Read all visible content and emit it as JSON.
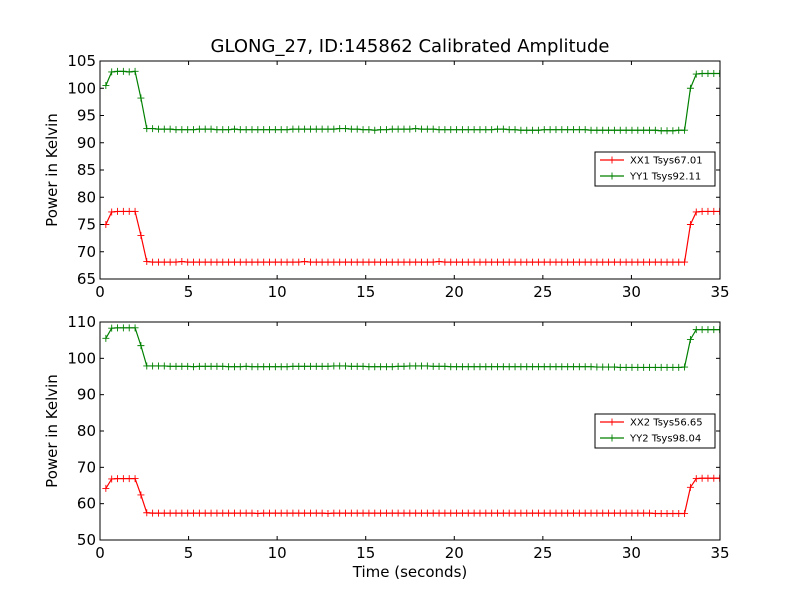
{
  "figure": {
    "title": "GLONG_27, ID:145862 Calibrated Amplitude",
    "xlabel": "Time (seconds)"
  },
  "chart_data": [
    {
      "type": "line",
      "title": "GLONG_27, ID:145862 Calibrated Amplitude",
      "xlabel": "",
      "ylabel": "Power in Kelvin",
      "xlim": [
        0,
        35
      ],
      "ylim": [
        65,
        105
      ],
      "xticks": [
        "0",
        "5",
        "10",
        "15",
        "20",
        "25",
        "30",
        "35"
      ],
      "yticks": [
        "65",
        "70",
        "75",
        "80",
        "85",
        "90",
        "95",
        "100",
        "105"
      ],
      "x_start": 0.33,
      "x_step": 0.33,
      "legend_position": "right",
      "series": [
        {
          "name": "XX1 Tsys67.01",
          "color": "#ff0000",
          "values": [
            75.0,
            77.3,
            77.4,
            77.4,
            77.4,
            77.4,
            73.0,
            68.2,
            68.1,
            68.1,
            68.1,
            68.1,
            68.1,
            68.2,
            68.1,
            68.1,
            68.1,
            68.1,
            68.1,
            68.1,
            68.1,
            68.1,
            68.1,
            68.1,
            68.1,
            68.1,
            68.1,
            68.1,
            68.1,
            68.1,
            68.1,
            68.1,
            68.1,
            68.1,
            68.2,
            68.1,
            68.1,
            68.1,
            68.1,
            68.1,
            68.1,
            68.1,
            68.1,
            68.1,
            68.1,
            68.1,
            68.1,
            68.1,
            68.1,
            68.1,
            68.1,
            68.1,
            68.1,
            68.1,
            68.1,
            68.1,
            68.1,
            68.2,
            68.1,
            68.1,
            68.1,
            68.1,
            68.1,
            68.1,
            68.1,
            68.1,
            68.1,
            68.1,
            68.1,
            68.1,
            68.1,
            68.1,
            68.1,
            68.1,
            68.1,
            68.1,
            68.1,
            68.1,
            68.1,
            68.1,
            68.1,
            68.1,
            68.1,
            68.1,
            68.1,
            68.1,
            68.1,
            68.1,
            68.1,
            68.1,
            68.1,
            68.1,
            68.1,
            68.1,
            68.1,
            68.1,
            68.1,
            68.1,
            68.1,
            68.1,
            75.0,
            77.3,
            77.4,
            77.4,
            77.4,
            77.4
          ]
        },
        {
          "name": "YY1 Tsys92.11",
          "color": "#008000",
          "values": [
            100.5,
            103.0,
            103.1,
            103.1,
            103.0,
            103.1,
            98.2,
            92.6,
            92.6,
            92.5,
            92.5,
            92.5,
            92.4,
            92.4,
            92.4,
            92.4,
            92.5,
            92.5,
            92.5,
            92.4,
            92.4,
            92.4,
            92.5,
            92.4,
            92.4,
            92.4,
            92.4,
            92.4,
            92.4,
            92.4,
            92.4,
            92.4,
            92.5,
            92.5,
            92.5,
            92.5,
            92.5,
            92.5,
            92.5,
            92.5,
            92.6,
            92.6,
            92.5,
            92.5,
            92.4,
            92.4,
            92.3,
            92.4,
            92.4,
            92.5,
            92.5,
            92.5,
            92.5,
            92.6,
            92.5,
            92.5,
            92.5,
            92.4,
            92.4,
            92.4,
            92.4,
            92.4,
            92.4,
            92.4,
            92.4,
            92.4,
            92.4,
            92.5,
            92.5,
            92.4,
            92.4,
            92.3,
            92.3,
            92.3,
            92.3,
            92.4,
            92.4,
            92.4,
            92.4,
            92.4,
            92.4,
            92.4,
            92.4,
            92.3,
            92.3,
            92.3,
            92.3,
            92.3,
            92.3,
            92.3,
            92.3,
            92.3,
            92.3,
            92.3,
            92.3,
            92.2,
            92.2,
            92.2,
            92.3,
            92.3,
            100.0,
            102.6,
            102.7,
            102.7,
            102.7,
            102.7
          ]
        }
      ]
    },
    {
      "type": "line",
      "title": "",
      "xlabel": "Time (seconds)",
      "ylabel": "Power in Kelvin",
      "xlim": [
        0,
        35
      ],
      "ylim": [
        50,
        110
      ],
      "xticks": [
        "0",
        "5",
        "10",
        "15",
        "20",
        "25",
        "30",
        "35"
      ],
      "yticks": [
        "50",
        "60",
        "70",
        "80",
        "90",
        "100",
        "110"
      ],
      "x_start": 0.33,
      "x_step": 0.33,
      "legend_position": "right",
      "series": [
        {
          "name": "XX2 Tsys56.65",
          "color": "#ff0000",
          "values": [
            64.2,
            66.8,
            66.9,
            66.9,
            66.9,
            66.9,
            62.4,
            57.5,
            57.4,
            57.4,
            57.4,
            57.4,
            57.4,
            57.4,
            57.4,
            57.4,
            57.4,
            57.4,
            57.4,
            57.4,
            57.4,
            57.4,
            57.4,
            57.4,
            57.4,
            57.4,
            57.3,
            57.4,
            57.4,
            57.4,
            57.4,
            57.4,
            57.4,
            57.4,
            57.4,
            57.4,
            57.4,
            57.4,
            57.3,
            57.4,
            57.4,
            57.4,
            57.4,
            57.4,
            57.4,
            57.4,
            57.4,
            57.4,
            57.4,
            57.4,
            57.4,
            57.4,
            57.4,
            57.4,
            57.4,
            57.4,
            57.4,
            57.4,
            57.4,
            57.4,
            57.4,
            57.4,
            57.4,
            57.4,
            57.4,
            57.4,
            57.4,
            57.4,
            57.4,
            57.4,
            57.4,
            57.4,
            57.4,
            57.4,
            57.4,
            57.4,
            57.4,
            57.4,
            57.4,
            57.4,
            57.4,
            57.4,
            57.4,
            57.4,
            57.4,
            57.4,
            57.4,
            57.4,
            57.4,
            57.4,
            57.4,
            57.4,
            57.4,
            57.4,
            57.3,
            57.3,
            57.3,
            57.3,
            57.3,
            57.3,
            64.5,
            66.9,
            67.0,
            67.0,
            67.0,
            67.0
          ]
        },
        {
          "name": "YY2 Tsys98.04",
          "color": "#008000",
          "values": [
            105.5,
            108.3,
            108.4,
            108.4,
            108.4,
            108.4,
            103.5,
            97.9,
            97.9,
            97.9,
            97.9,
            97.8,
            97.8,
            97.8,
            97.8,
            97.7,
            97.8,
            97.8,
            97.8,
            97.8,
            97.8,
            97.7,
            97.7,
            97.7,
            97.8,
            97.7,
            97.7,
            97.7,
            97.7,
            97.7,
            97.7,
            97.7,
            97.8,
            97.8,
            97.8,
            97.8,
            97.8,
            97.8,
            97.8,
            97.9,
            97.9,
            97.9,
            97.8,
            97.8,
            97.8,
            97.7,
            97.7,
            97.7,
            97.7,
            97.7,
            97.8,
            97.8,
            97.9,
            97.9,
            97.9,
            97.9,
            97.8,
            97.8,
            97.8,
            97.7,
            97.7,
            97.7,
            97.7,
            97.7,
            97.7,
            97.7,
            97.7,
            97.7,
            97.7,
            97.7,
            97.7,
            97.7,
            97.7,
            97.7,
            97.7,
            97.7,
            97.7,
            97.7,
            97.7,
            97.7,
            97.7,
            97.7,
            97.7,
            97.7,
            97.6,
            97.6,
            97.6,
            97.6,
            97.5,
            97.5,
            97.5,
            97.5,
            97.5,
            97.5,
            97.5,
            97.5,
            97.5,
            97.5,
            97.5,
            97.6,
            105.2,
            107.9,
            107.9,
            107.9,
            107.9,
            107.9
          ]
        }
      ]
    }
  ]
}
